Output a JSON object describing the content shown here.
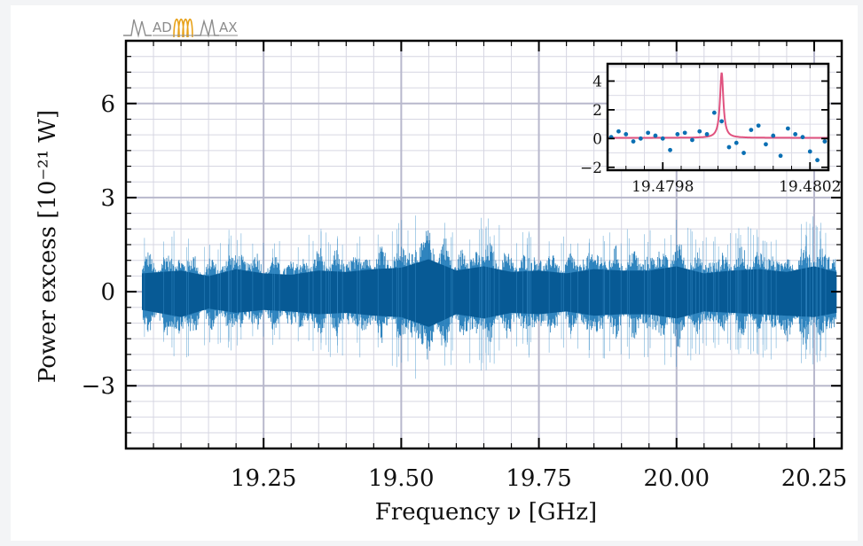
{
  "logo": {
    "text_left": "AD",
    "text_right": "AX",
    "brand": "MADMAX",
    "accent": "#e8a21a",
    "gray": "#8c8c8c"
  },
  "colors": {
    "signal": "#0a6fb3",
    "fit": "#e0527f",
    "grid": "#b8b8cc",
    "frame": "#000000"
  },
  "chart_data": [
    {
      "type": "line",
      "title": "",
      "xlabel": "Frequency ν [GHz]",
      "ylabel": "Power excess [10⁻²¹ W]",
      "xlim": [
        19.0,
        20.3
      ],
      "ylim": [
        -5,
        8
      ],
      "xticks": [
        19.25,
        19.5,
        19.75,
        20.0,
        20.25
      ],
      "xtick_labels": [
        "19.25",
        "19.50",
        "19.75",
        "20.00",
        "20.25"
      ],
      "yticks": [
        -3,
        0,
        3,
        6
      ],
      "ytick_labels": [
        "−3",
        "0",
        "3",
        "6"
      ],
      "grid": true,
      "series": [
        {
          "style": "noise-band",
          "x_range": [
            19.03,
            20.29
          ],
          "center": 0,
          "envelope_x": [
            19.03,
            19.1,
            19.15,
            19.2,
            19.25,
            19.3,
            19.35,
            19.4,
            19.45,
            19.5,
            19.55,
            19.6,
            19.65,
            19.7,
            19.75,
            19.8,
            19.85,
            19.9,
            19.95,
            20.0,
            20.05,
            20.1,
            20.15,
            20.2,
            20.25,
            20.29
          ],
          "upper": [
            1.3,
            1.5,
            1.1,
            1.6,
            1.3,
            1.2,
            1.5,
            1.4,
            1.6,
            1.7,
            2.3,
            1.5,
            1.8,
            1.4,
            1.5,
            1.3,
            1.6,
            1.5,
            1.5,
            1.8,
            1.3,
            1.5,
            1.6,
            1.4,
            1.8,
            1.4
          ],
          "lower": [
            -1.3,
            -1.8,
            -1.2,
            -1.5,
            -1.3,
            -1.4,
            -1.6,
            -1.5,
            -1.7,
            -1.8,
            -2.5,
            -1.6,
            -1.9,
            -1.5,
            -1.6,
            -1.4,
            -1.7,
            -1.6,
            -1.6,
            -1.9,
            -1.4,
            -1.5,
            -1.6,
            -1.7,
            -1.8,
            -1.5
          ]
        }
      ]
    },
    {
      "type": "scatter",
      "title": "",
      "inset": true,
      "xlim": [
        19.47965,
        19.48025
      ],
      "ylim": [
        -2.2,
        5.2
      ],
      "xticks": [
        19.4798,
        19.4802
      ],
      "xtick_labels": [
        "19.4798",
        "19.4802"
      ],
      "yticks": [
        -2,
        0,
        2,
        4
      ],
      "ytick_labels": [
        "−2",
        "0",
        "2",
        "4"
      ],
      "series": [
        {
          "style": "points",
          "x": [
            19.47966,
            19.47968,
            19.4797,
            19.47972,
            19.47974,
            19.47976,
            19.47978,
            19.4798,
            19.47982,
            19.47984,
            19.47986,
            19.47988,
            19.4799,
            19.47992,
            19.47994,
            19.47996,
            19.47998,
            19.48,
            19.48002,
            19.48004,
            19.48006,
            19.48008,
            19.4801,
            19.48012,
            19.48014,
            19.48016,
            19.48018,
            19.4802,
            19.48022,
            19.48024
          ],
          "y": [
            0.1,
            0.5,
            0.3,
            -0.2,
            0.0,
            0.4,
            0.2,
            0.0,
            -0.8,
            0.3,
            0.4,
            -0.1,
            0.5,
            0.3,
            1.8,
            1.2,
            -0.6,
            -0.3,
            -1.0,
            0.6,
            0.9,
            -0.4,
            0.2,
            -1.2,
            0.7,
            0.3,
            0.1,
            -0.9,
            -1.5,
            -0.2
          ]
        },
        {
          "style": "line",
          "peak_x": 19.47996,
          "peak_y": 4.6,
          "baseline": 0.05
        }
      ]
    }
  ]
}
